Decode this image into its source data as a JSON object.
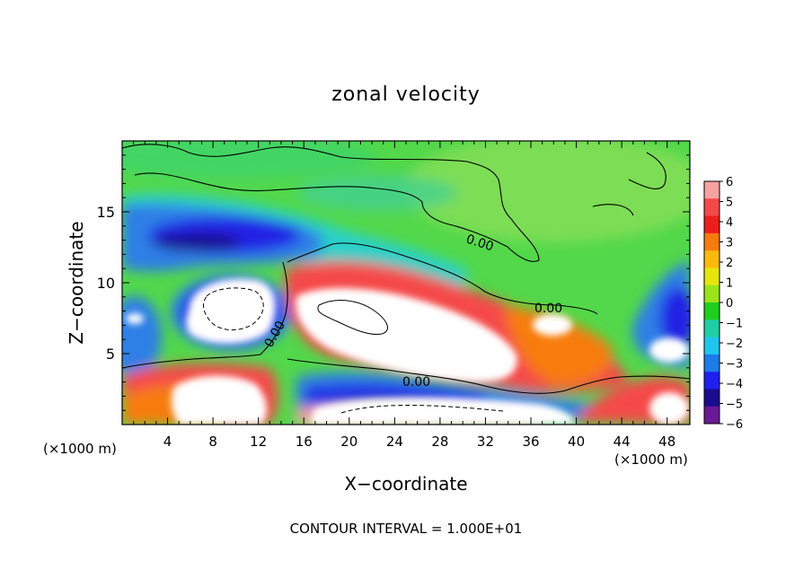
{
  "chart_data": {
    "type": "heatmap",
    "title": "zonal velocity",
    "xlabel": "X−coordinate",
    "ylabel": "Z−coordinate",
    "x_unit": "(×1000 m)",
    "y_unit": "(×1000 m)",
    "xlim": [
      0,
      50
    ],
    "ylim": [
      0,
      20
    ],
    "x_ticks": [
      4,
      8,
      12,
      16,
      20,
      24,
      28,
      32,
      36,
      40,
      44,
      48
    ],
    "y_ticks": [
      5,
      10,
      15
    ],
    "footer": "CONTOUR INTERVAL = 1.000E+01",
    "contour_labels": [
      "0.00",
      "0.00",
      "0.00",
      "0.00"
    ],
    "colorbar": {
      "levels": [
        6,
        5,
        4,
        3,
        2,
        1,
        0,
        -1,
        -2,
        -3,
        -4,
        -5,
        -6
      ],
      "labels": [
        "6",
        "5",
        "4",
        "3",
        "2",
        "1",
        "0",
        "−1",
        "−2",
        "−3",
        "−4",
        "−5",
        "−6"
      ],
      "colors": [
        "#f7a1a1",
        "#f54848",
        "#ee1d1d",
        "#f77b0e",
        "#fbb90c",
        "#e6e60c",
        "#99e51a",
        "#1ecf1e",
        "#1ecfa5",
        "#1ec6ee",
        "#1d7ae9",
        "#1f1ff2",
        "#1a0c8e",
        "#6a1a94"
      ]
    }
  }
}
